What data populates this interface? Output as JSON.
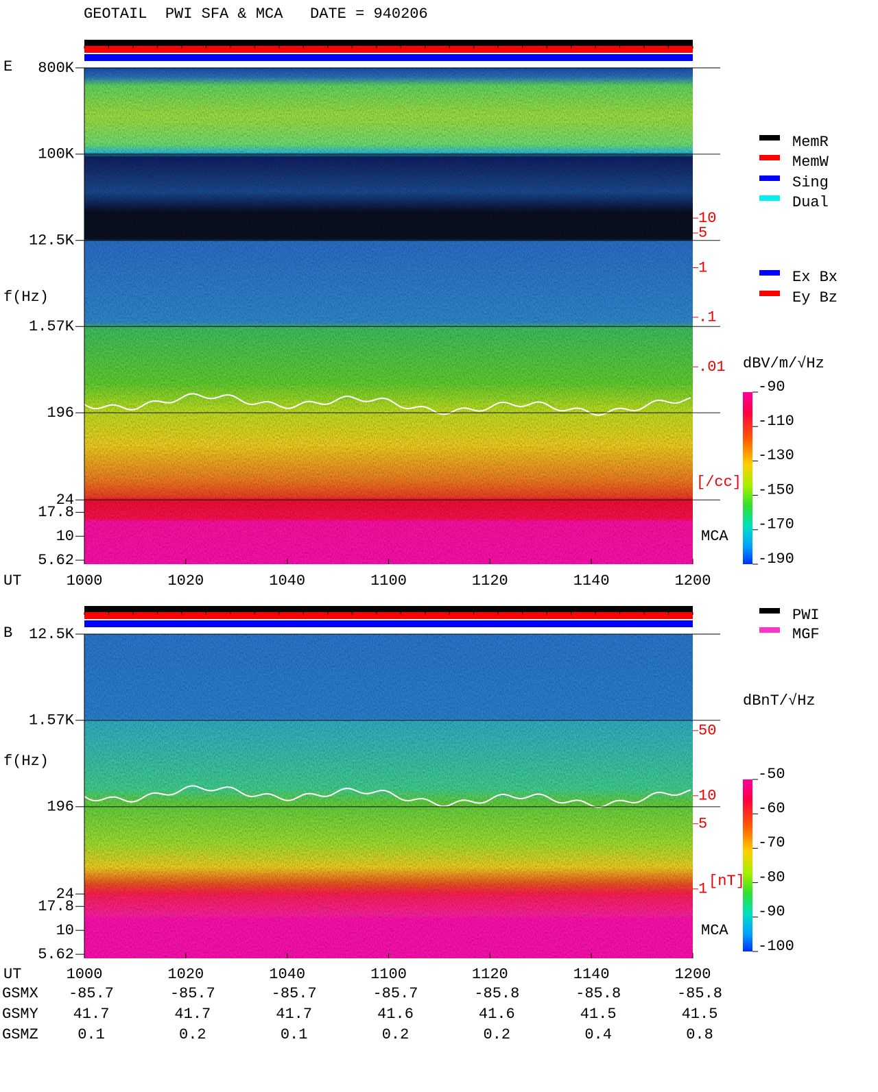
{
  "header": {
    "title": "GEOTAIL  PWI SFA & MCA   DATE = 940206"
  },
  "chart_data": [
    {
      "type": "spectrogram",
      "panel_label": "E",
      "y_label": "f(Hz)",
      "x_label": "UT",
      "log_y": true,
      "ylim": [
        5.1,
        800000
      ],
      "yticks": [
        {
          "value": 800000,
          "label": "800K"
        },
        {
          "value": 100000,
          "label": "100K"
        },
        {
          "value": 12500,
          "label": "12.5K"
        },
        {
          "value": 1570,
          "label": "1.57K"
        },
        196,
        24,
        17.8,
        10,
        5.62
      ],
      "categories": [
        "1000",
        "1020",
        "1040",
        "1100",
        "1120",
        "1140",
        "1200"
      ],
      "y2lim": [
        1.05e-06,
        10700
      ],
      "y2ticks": [
        10,
        5,
        1,
        {
          "value": 0.1,
          "label": ".1"
        },
        {
          "value": 0.01,
          "label": ".01"
        }
      ],
      "y2_unit": "[/cc]",
      "mca_label": "MCA",
      "colorbar": {
        "label": "dBV/m/√Hz",
        "lim": [
          -190,
          -90
        ],
        "ticks": [
          -90,
          -110,
          -130,
          -150,
          -170,
          -190
        ]
      },
      "legend": [
        {
          "name": "MemR",
          "color": "#000000"
        },
        {
          "name": "MemW",
          "color": "#ff0000"
        },
        {
          "name": "Sing",
          "color": "#0000ff"
        },
        {
          "name": "Dual",
          "color": "#00f0f0"
        }
      ],
      "legend2": [
        {
          "name": "Ex Bx",
          "color": "#0000ff"
        },
        {
          "name": "Ey Bz",
          "color": "#ff0000"
        }
      ]
    },
    {
      "type": "spectrogram",
      "panel_label": "B",
      "y_label": "f(Hz)",
      "x_label": "UT",
      "log_y": true,
      "ylim": [
        5.1,
        12500
      ],
      "yticks": [
        {
          "value": 12500,
          "label": "12.5K"
        },
        {
          "value": 1570,
          "label": "1.57K"
        },
        196,
        24,
        17.8,
        10,
        5.62
      ],
      "categories": [
        "1000",
        "1020",
        "1040",
        "1100",
        "1120",
        "1140",
        "1200"
      ],
      "y2lim": [
        0.18,
        543
      ],
      "y2ticks": [
        50,
        10,
        5,
        1
      ],
      "y2_unit": "[nT]",
      "mca_label": "MCA",
      "colorbar": {
        "label": "dBnT/√Hz",
        "lim": [
          -100,
          -50
        ],
        "ticks": [
          -50,
          -60,
          -70,
          -80,
          -90,
          -100
        ]
      },
      "legend": [
        {
          "name": "PWI",
          "color": "#000000"
        },
        {
          "name": "MGF",
          "color": "#ff33cc"
        }
      ]
    }
  ],
  "orbit": {
    "rows": [
      {
        "name": "GSMX",
        "values": [
          -85.7,
          -85.7,
          -85.7,
          -85.7,
          -85.8,
          -85.8,
          -85.8
        ]
      },
      {
        "name": "GSMY",
        "values": [
          41.7,
          41.7,
          41.7,
          41.6,
          41.6,
          41.5,
          41.5
        ]
      },
      {
        "name": "GSMZ",
        "values": [
          0.1,
          0.2,
          0.1,
          0.2,
          0.2,
          0.4,
          0.8
        ]
      }
    ]
  }
}
